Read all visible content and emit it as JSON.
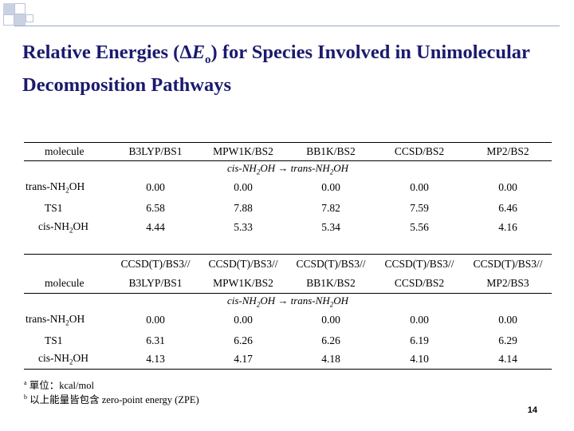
{
  "slide": {
    "title": {
      "pre": "Relative Energies (",
      "delta": "Δ",
      "e": "E",
      "sub": "o",
      "post": ") for Species Involved in Unimolecular Decomposition Pathways"
    },
    "footnotes": [
      {
        "mark": "a",
        "text": "單位：kcal/mol"
      },
      {
        "mark": "b",
        "text": "以上能量皆包含 zero-point energy (ZPE)"
      }
    ],
    "page_number": "14"
  },
  "table1": {
    "header_label": "molecule",
    "methods": [
      "B3LYP/BS1",
      "MPW1K/BS2",
      "BB1K/BS2",
      "CCSD/BS2",
      "MP2/BS2"
    ],
    "reaction": {
      "left_pre": "cis-NH",
      "left_sub": "2",
      "left_post": "OH",
      "arrow": "→",
      "right_pre": "trans-NH",
      "right_sub": "2",
      "right_post": "OH"
    },
    "rows": [
      {
        "name": "trans-NH",
        "sub": "2",
        "post": "OH",
        "values": [
          "0.00",
          "0.00",
          "0.00",
          "0.00",
          "0.00"
        ]
      },
      {
        "name": "TS1",
        "sub": "",
        "post": "",
        "values": [
          "6.58",
          "7.88",
          "7.82",
          "7.59",
          "6.46"
        ]
      },
      {
        "name": "cis-NH",
        "sub": "2",
        "post": "OH",
        "values": [
          "4.44",
          "5.33",
          "5.34",
          "5.56",
          "4.16"
        ]
      }
    ]
  },
  "table2": {
    "header_label": "molecule",
    "prefix": [
      "CCSD(T)/BS3//",
      "CCSD(T)/BS3//",
      "CCSD(T)/BS3//",
      "CCSD(T)/BS3//",
      "CCSD(T)/BS3//"
    ],
    "methods": [
      "B3LYP/BS1",
      "MPW1K/BS2",
      "BB1K/BS2",
      "CCSD/BS2",
      "MP2/BS3"
    ],
    "reaction": {
      "left_pre": "cis-NH",
      "left_sub": "2",
      "left_post": "OH",
      "arrow": "→",
      "right_pre": "trans-NH",
      "right_sub": "2",
      "right_post": "OH"
    },
    "rows": [
      {
        "name": "trans-NH",
        "sub": "2",
        "post": "OH",
        "values": [
          "0.00",
          "0.00",
          "0.00",
          "0.00",
          "0.00"
        ]
      },
      {
        "name": "TS1",
        "sub": "",
        "post": "",
        "values": [
          "6.31",
          "6.26",
          "6.26",
          "6.19",
          "6.29"
        ]
      },
      {
        "name": "cis-NH",
        "sub": "2",
        "post": "OH",
        "values": [
          "4.13",
          "4.17",
          "4.18",
          "4.10",
          "4.14"
        ]
      }
    ]
  }
}
